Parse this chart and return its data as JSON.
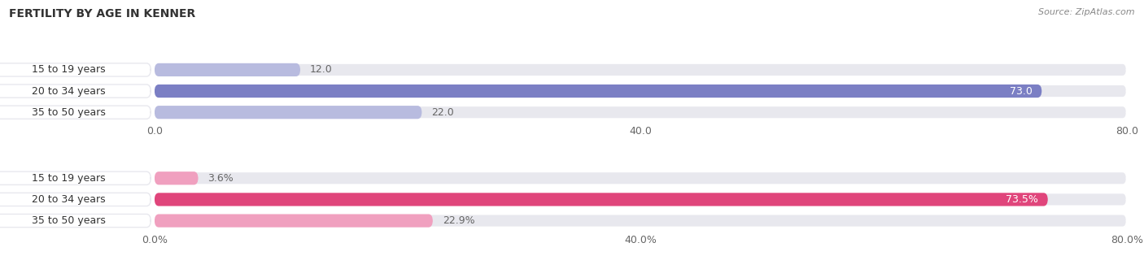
{
  "title": "Female Fertility by Age in Kenner",
  "title_display": "FERTILITY BY AGE IN KENNER",
  "source": "Source: ZipAtlas.com",
  "top_bars": {
    "categories": [
      "15 to 19 years",
      "20 to 34 years",
      "35 to 50 years"
    ],
    "values": [
      12.0,
      73.0,
      22.0
    ],
    "xlim": [
      0,
      80
    ],
    "xticks": [
      0.0,
      40.0,
      80.0
    ],
    "xtick_labels": [
      "0.0",
      "40.0",
      "80.0"
    ],
    "bar_color_dark": "#7b7fc4",
    "bar_color_light": "#b8bbdf",
    "label_inside_color": "#ffffff",
    "label_outside_color": "#666666",
    "label_inside_threshold": 50
  },
  "bottom_bars": {
    "categories": [
      "15 to 19 years",
      "20 to 34 years",
      "35 to 50 years"
    ],
    "values": [
      3.6,
      73.5,
      22.9
    ],
    "xlim": [
      0,
      80
    ],
    "xticks": [
      0.0,
      40.0,
      80.0
    ],
    "xtick_labels": [
      "0.0%",
      "40.0%",
      "80.0%"
    ],
    "bar_color_dark": "#e0457b",
    "bar_color_light": "#f0a0bf",
    "label_inside_color": "#ffffff",
    "label_outside_color": "#666666",
    "label_inside_threshold": 50
  },
  "bg_color": "#ffffff",
  "bar_bg_color": "#e8e8ee",
  "cat_bg_color": "#ffffff",
  "title_fontsize": 10,
  "source_fontsize": 8,
  "label_fontsize": 9,
  "tick_fontsize": 9,
  "cat_fontsize": 9
}
